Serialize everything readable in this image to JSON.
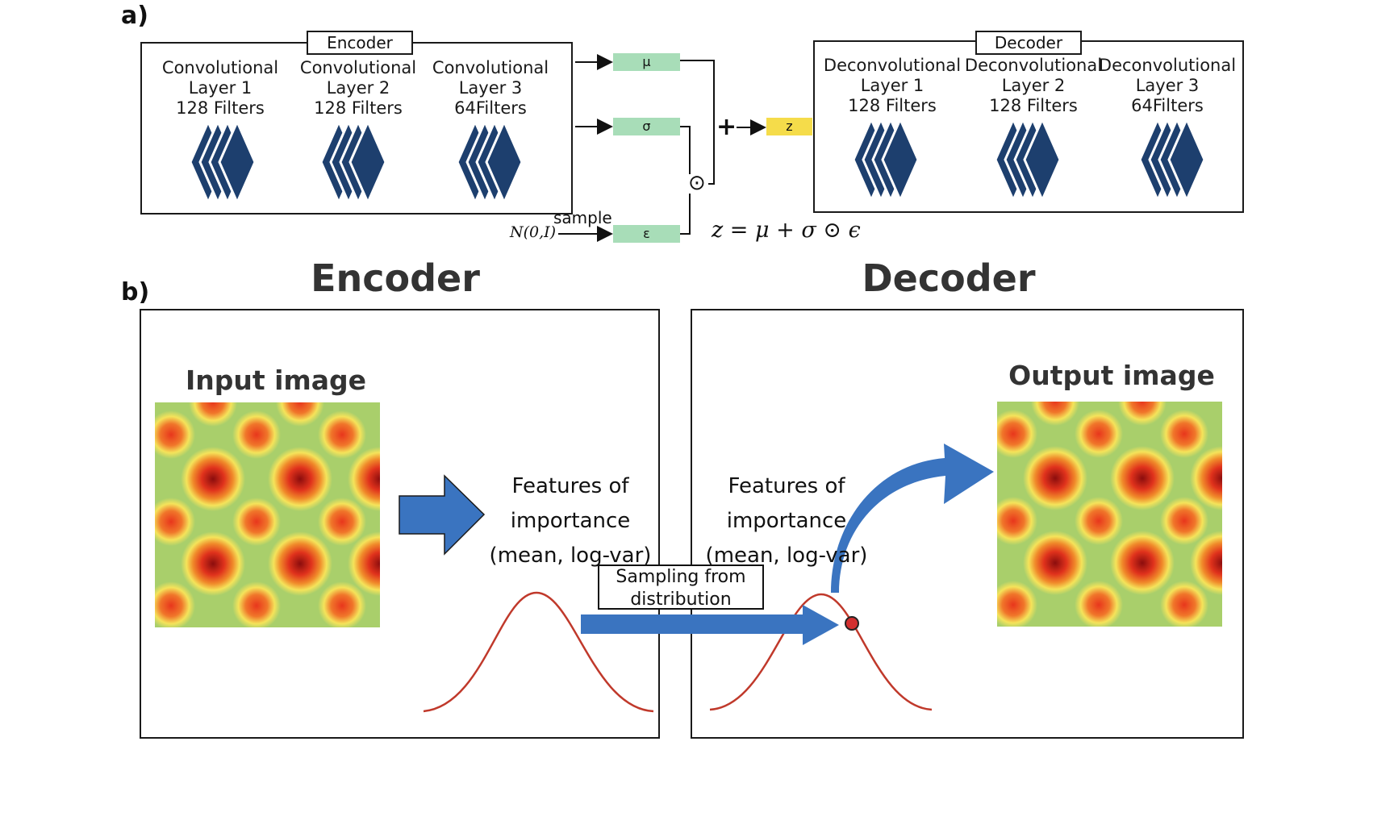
{
  "panel_a": {
    "label": "a)",
    "encoder": {
      "title": "Encoder",
      "layers": [
        {
          "lines": [
            "Convolutional",
            "Layer 1",
            "128 Filters"
          ]
        },
        {
          "lines": [
            "Convolutional",
            "Layer 2",
            "128 Filters"
          ]
        },
        {
          "lines": [
            "Convolutional",
            "Layer 3",
            "64Filters"
          ]
        }
      ]
    },
    "decoder": {
      "title": "Decoder",
      "layers": [
        {
          "lines": [
            "Deconvolutional",
            "Layer 1",
            "128 Filters"
          ]
        },
        {
          "lines": [
            "Deconvolutional",
            "Layer 2",
            "128 Filters"
          ]
        },
        {
          "lines": [
            "Deconvolutional",
            "Layer 3",
            "64Filters"
          ]
        }
      ]
    },
    "latent": {
      "mu": "μ",
      "sigma": "σ",
      "epsilon": "ε",
      "z": "z",
      "plus": "+",
      "odot": "⊙",
      "sample_label": "sample",
      "noise_label": "N(0,I)",
      "equation": "z = μ + σ ⊙ ϵ"
    },
    "colors": {
      "latent_box": "#a8ddb8",
      "z_box": "#f5dc4a",
      "layer_icon": "#1d3f6e"
    }
  },
  "panel_b": {
    "label": "b)",
    "encoder_heading": "Encoder",
    "decoder_heading": "Decoder",
    "input_title": "Input image",
    "output_title": "Output image",
    "features_left": [
      "Features of",
      "importance",
      "(mean, log-var)"
    ],
    "features_right": [
      "Features of",
      "importance",
      "(mean, log-var)"
    ],
    "sampling_box": [
      "Sampling from",
      "distribution"
    ],
    "colors": {
      "arrow": "#3a74c0",
      "curve": "#c0392b",
      "point": "#d32f2f"
    }
  }
}
